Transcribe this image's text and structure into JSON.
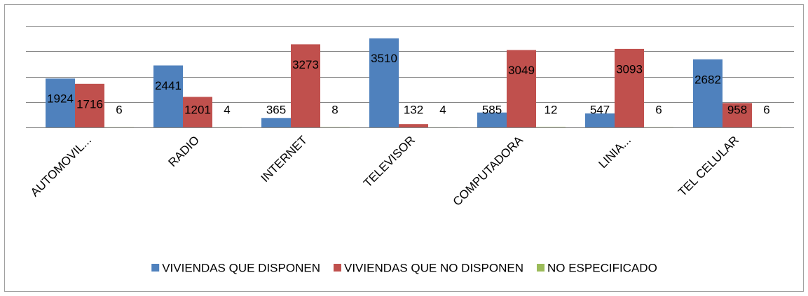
{
  "chart_data": {
    "type": "bar",
    "categories": [
      "AUTOMOVIL...",
      "RADIO",
      "INTERNET",
      "TELEVISOR",
      "COMPUTADORA",
      "LINIA...",
      "TEL CELULAR"
    ],
    "series": [
      {
        "name": "VIVIENDAS QUE DISPONEN",
        "color": "#4f81bd",
        "values": [
          1924,
          2441,
          365,
          3510,
          585,
          547,
          2682
        ]
      },
      {
        "name": "VIVIENDAS QUE NO DISPONEN",
        "color": "#c0504d",
        "values": [
          1716,
          1201,
          3273,
          132,
          3049,
          3093,
          958
        ]
      },
      {
        "name": "NO ESPECIFICADO",
        "color": "#9bbb59",
        "values": [
          6,
          4,
          8,
          4,
          12,
          6,
          6
        ]
      }
    ],
    "ylim": [
      0,
      4000
    ],
    "yticks": [
      0,
      1000,
      2000,
      3000,
      4000
    ],
    "grid": true,
    "legend": "bottom"
  }
}
